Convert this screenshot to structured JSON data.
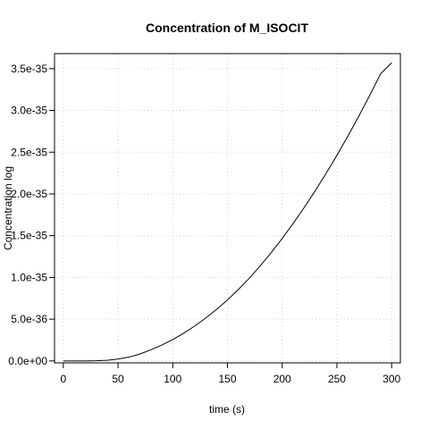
{
  "chart_data": {
    "type": "line",
    "title": "Concentration of M_ISOCIT",
    "xlabel": "time (s)",
    "ylabel": "Concentration log",
    "xlim": [
      -8,
      308
    ],
    "ylim": [
      -2.3e-37,
      3.68e-35
    ],
    "x_ticks": [
      0,
      50,
      100,
      150,
      200,
      250,
      300
    ],
    "x_tick_labels": [
      "0",
      "50",
      "100",
      "150",
      "200",
      "250",
      "300"
    ],
    "y_ticks": [
      0,
      5e-36,
      1e-35,
      1.5e-35,
      2e-35,
      2.5e-35,
      3e-35,
      3.5e-35
    ],
    "y_tick_labels": [
      "0.0e+00",
      "5.0e-36",
      "1.0e-35",
      "1.5e-35",
      "2.0e-35",
      "2.5e-35",
      "3.0e-35",
      "3.5e-35"
    ],
    "grid": true,
    "series": [
      {
        "color": "#000000",
        "x": [
          0,
          10,
          20,
          30,
          40,
          50,
          60,
          70,
          80,
          90,
          100,
          110,
          120,
          130,
          140,
          150,
          160,
          170,
          180,
          190,
          200,
          210,
          220,
          230,
          240,
          250,
          260,
          270,
          280,
          290,
          300
        ],
        "y": [
          0,
          0,
          0,
          2e-38,
          8e-38,
          2.2e-37,
          4.6e-37,
          8.3e-37,
          1.33e-36,
          1.9e-36,
          2.56e-36,
          3.32e-36,
          4.17e-36,
          5.12e-36,
          6.16e-36,
          7.3e-36,
          8.56e-36,
          9.92e-36,
          1.139e-35,
          1.298e-35,
          1.467e-35,
          1.646e-35,
          1.835e-35,
          2.034e-35,
          2.243e-35,
          2.462e-35,
          2.692e-35,
          2.931e-35,
          3.181e-35,
          3.44e-35,
          3.57e-35
        ]
      }
    ]
  }
}
